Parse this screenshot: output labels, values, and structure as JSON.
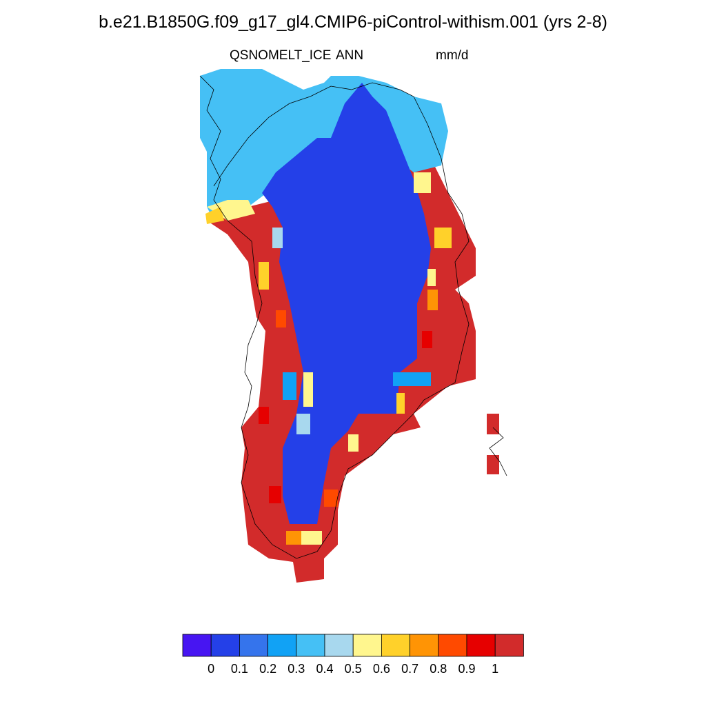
{
  "title": "b.e21.B1850G.f09_g17_gl4.CMIP6-piControl-withism.001 (yrs 2-8)",
  "subtitle_left": "QSNOMELT_ICE",
  "subtitle_center": "ANN",
  "subtitle_right": "mm/d",
  "colorbar": {
    "colors": [
      "#4715f2",
      "#2440e8",
      "#3574ec",
      "#11a2f5",
      "#45c0f5",
      "#a8d8ee",
      "#fff68e",
      "#ffd12a",
      "#ff9405",
      "#ff4a00",
      "#e60000",
      "#d22b2b"
    ],
    "tick_labels": [
      "0",
      "0.1",
      "0.2",
      "0.3",
      "0.4",
      "0.5",
      "0.6",
      "0.7",
      "0.8",
      "0.9",
      "1"
    ]
  },
  "map": {
    "region": "Greenland",
    "interior_value_class": "0–0.1",
    "margin_value_class": ">1"
  }
}
